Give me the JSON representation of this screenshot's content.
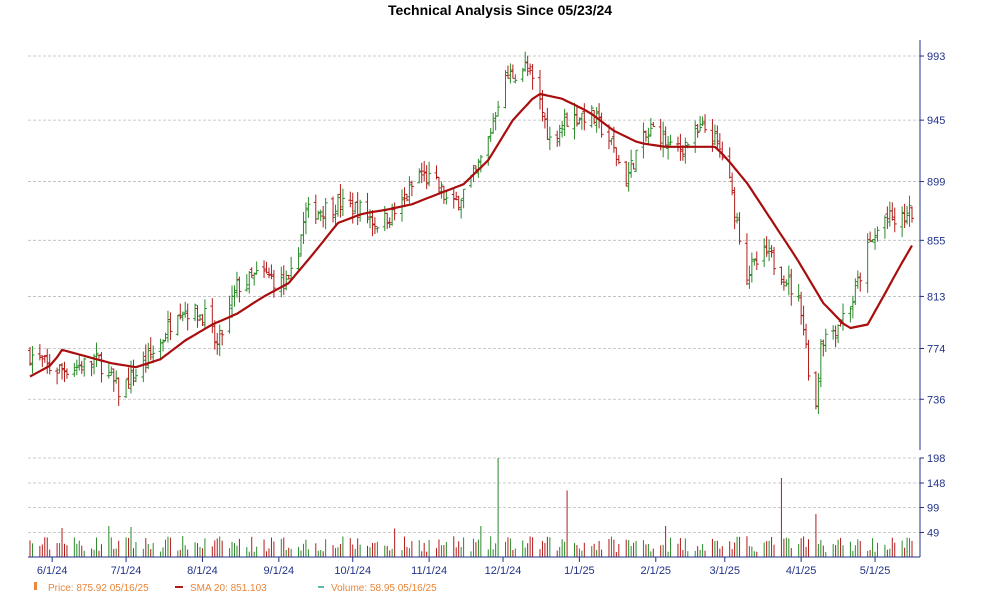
{
  "chart_data": {
    "type": "ohlc",
    "title": "Technical Analysis Since 05/23/24",
    "price_axis": {
      "ylim": [
        698,
        1005
      ],
      "ticks": [
        736,
        774,
        813,
        855,
        899,
        945,
        993
      ]
    },
    "volume_axis": {
      "ylim": [
        0,
        198
      ],
      "ticks": [
        49,
        99,
        148,
        198
      ]
    },
    "x_axis": {
      "start": "2024-05-23",
      "end": "2025-05-16",
      "ticks": [
        {
          "date": "2024-06-01",
          "label": "6/1/24"
        },
        {
          "date": "2024-07-01",
          "label": "7/1/24"
        },
        {
          "date": "2024-08-01",
          "label": "8/1/24"
        },
        {
          "date": "2024-09-01",
          "label": "9/1/24"
        },
        {
          "date": "2024-10-01",
          "label": "10/1/24"
        },
        {
          "date": "2024-11-01",
          "label": "11/1/24"
        },
        {
          "date": "2024-12-01",
          "label": "12/1/24"
        },
        {
          "date": "2025-01-01",
          "label": "1/1/25"
        },
        {
          "date": "2025-02-01",
          "label": "2/1/25"
        },
        {
          "date": "2025-03-01",
          "label": "3/1/25"
        },
        {
          "date": "2025-04-01",
          "label": "4/1/25"
        },
        {
          "date": "2025-05-01",
          "label": "5/1/25"
        }
      ]
    },
    "close_path": [
      [
        "2024-05-23",
        770
      ],
      [
        "2024-06-01",
        758
      ],
      [
        "2024-06-10",
        760
      ],
      [
        "2024-06-20",
        765
      ],
      [
        "2024-06-28",
        742
      ],
      [
        "2024-07-05",
        755
      ],
      [
        "2024-07-15",
        778
      ],
      [
        "2024-07-22",
        805
      ],
      [
        "2024-08-02",
        798
      ],
      [
        "2024-08-07",
        775
      ],
      [
        "2024-08-15",
        820
      ],
      [
        "2024-08-25",
        830
      ],
      [
        "2024-09-05",
        820
      ],
      [
        "2024-09-12",
        875
      ],
      [
        "2024-09-25",
        882
      ],
      [
        "2024-10-05",
        878
      ],
      [
        "2024-10-10",
        868
      ],
      [
        "2024-10-20",
        878
      ],
      [
        "2024-10-28",
        905
      ],
      [
        "2024-11-05",
        895
      ],
      [
        "2024-11-10",
        878
      ],
      [
        "2024-11-20",
        905
      ],
      [
        "2024-11-25",
        930
      ],
      [
        "2024-12-01",
        975
      ],
      [
        "2024-12-10",
        985
      ],
      [
        "2024-12-15",
        965
      ],
      [
        "2024-12-20",
        930
      ],
      [
        "2024-12-26",
        945
      ],
      [
        "2025-01-05",
        950
      ],
      [
        "2025-01-12",
        935
      ],
      [
        "2025-01-20",
        900
      ],
      [
        "2025-01-25",
        925
      ],
      [
        "2025-02-01",
        940
      ],
      [
        "2025-02-08",
        920
      ],
      [
        "2025-02-15",
        930
      ],
      [
        "2025-02-22",
        940
      ],
      [
        "2025-03-01",
        915
      ],
      [
        "2025-03-06",
        870
      ],
      [
        "2025-03-10",
        830
      ],
      [
        "2025-03-18",
        845
      ],
      [
        "2025-03-25",
        830
      ],
      [
        "2025-04-01",
        805
      ],
      [
        "2025-04-04",
        760
      ],
      [
        "2025-04-07",
        730
      ],
      [
        "2025-04-09",
        780
      ],
      [
        "2025-04-15",
        790
      ],
      [
        "2025-04-22",
        810
      ],
      [
        "2025-04-28",
        848
      ],
      [
        "2025-05-05",
        872
      ],
      [
        "2025-05-10",
        868
      ],
      [
        "2025-05-16",
        875.92
      ]
    ],
    "sma_path": [
      [
        "2024-05-23",
        753
      ],
      [
        "2024-06-01",
        762
      ],
      [
        "2024-06-05",
        773
      ],
      [
        "2024-06-15",
        768
      ],
      [
        "2024-06-25",
        763
      ],
      [
        "2024-07-05",
        760
      ],
      [
        "2024-07-15",
        766
      ],
      [
        "2024-07-25",
        780
      ],
      [
        "2024-08-05",
        792
      ],
      [
        "2024-08-15",
        800
      ],
      [
        "2024-08-25",
        812
      ],
      [
        "2024-09-05",
        823
      ],
      [
        "2024-09-15",
        845
      ],
      [
        "2024-09-25",
        868
      ],
      [
        "2024-10-05",
        875
      ],
      [
        "2024-10-15",
        878
      ],
      [
        "2024-10-25",
        882
      ],
      [
        "2024-11-05",
        890
      ],
      [
        "2024-11-15",
        897
      ],
      [
        "2024-11-25",
        915
      ],
      [
        "2024-12-05",
        945
      ],
      [
        "2024-12-15",
        965
      ],
      [
        "2024-12-25",
        961
      ],
      [
        "2025-01-05",
        951
      ],
      [
        "2025-01-15",
        937
      ],
      [
        "2025-01-25",
        928
      ],
      [
        "2025-02-05",
        925
      ],
      [
        "2025-02-15",
        925
      ],
      [
        "2025-02-25",
        925
      ],
      [
        "2025-03-01",
        918
      ],
      [
        "2025-03-10",
        898
      ],
      [
        "2025-03-20",
        870
      ],
      [
        "2025-03-30",
        842
      ],
      [
        "2025-04-10",
        808
      ],
      [
        "2025-04-20",
        789
      ],
      [
        "2025-04-28",
        792
      ],
      [
        "2025-05-05",
        815
      ],
      [
        "2025-05-10",
        832
      ],
      [
        "2025-05-16",
        851.103
      ]
    ],
    "volume_spikes": [
      [
        "2024-06-05",
        58
      ],
      [
        "2024-06-24",
        62
      ],
      [
        "2024-07-03",
        60
      ],
      [
        "2024-09-22",
        69
      ],
      [
        "2024-10-18",
        57
      ],
      [
        "2024-11-22",
        62
      ],
      [
        "2024-11-29",
        198
      ],
      [
        "2024-12-27",
        133
      ],
      [
        "2025-02-05",
        62
      ],
      [
        "2025-03-24",
        158
      ],
      [
        "2025-04-07",
        86
      ]
    ],
    "series": [
      {
        "name": "Price",
        "value": "875.92",
        "date": "05/16/25",
        "color": "#e8863a",
        "marker": "bar-icon"
      },
      {
        "name": "SMA 20",
        "value": "851.103",
        "date": "",
        "color": "#b31b1b",
        "marker": "dash-icon"
      },
      {
        "name": "Volume",
        "value": "58.95",
        "date": "05/16/25",
        "color": "#2aa198",
        "marker": "dash-icon"
      }
    ],
    "colors": {
      "up": "#2a8a2a",
      "down": "#b31b1b",
      "sma": "#a80e0e",
      "grid": "#bbbbbb",
      "axis": "#223388"
    },
    "grid": true,
    "legend_position": "bottom-left"
  },
  "legend": {
    "price_label": "Price: 875.92  05/16/25",
    "sma_label": "SMA 20: 851.103",
    "volume_label": "Volume: 58.95  05/16/25"
  }
}
